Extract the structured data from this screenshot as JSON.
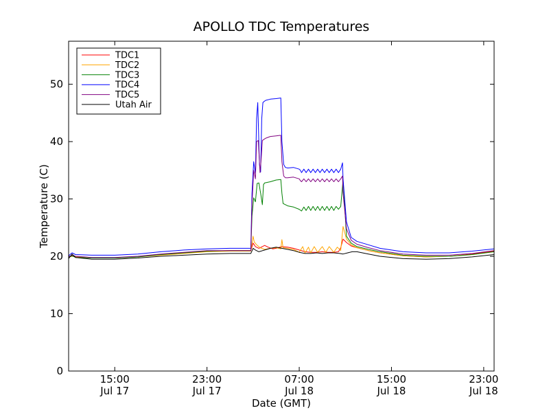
{
  "chart_data": {
    "type": "line",
    "title": "APOLLO TDC Temperatures",
    "xlabel": "Date (GMT)",
    "ylabel": "Temperature (C)",
    "ylim": [
      0,
      57.5
    ],
    "y_ticks": [
      0,
      10,
      20,
      30,
      40,
      50
    ],
    "xlim": [
      11.0,
      47.9
    ],
    "x_unit": "hours since Jul 17 00:00 GMT",
    "x_ticks": [
      {
        "x": 15,
        "time": "15:00",
        "date": "Jul 17"
      },
      {
        "x": 23,
        "time": "23:00",
        "date": "Jul 17"
      },
      {
        "x": 31,
        "time": "07:00",
        "date": "Jul 18"
      },
      {
        "x": 39,
        "time": "15:00",
        "date": "Jul 18"
      },
      {
        "x": 47,
        "time": "23:00",
        "date": "Jul 18"
      }
    ],
    "legend_position": "top-left",
    "series": [
      {
        "name": "TDC1",
        "color": "#ff0000",
        "x": [
          11.0,
          11.3,
          11.6,
          13,
          15,
          17,
          19,
          21,
          23,
          25,
          26.8,
          27.0,
          27.2,
          27.5,
          27.8,
          28.0,
          28.3,
          28.7,
          29.0,
          29.5,
          30.0,
          30.5,
          31.0,
          31.5,
          32.0,
          32.5,
          33.0,
          33.5,
          34.0,
          34.4,
          34.6,
          34.8,
          35.1,
          35.5,
          36.0,
          37,
          38,
          40,
          42,
          44,
          46,
          47.9
        ],
        "y": [
          19.9,
          20.1,
          19.9,
          19.7,
          19.7,
          19.9,
          20.3,
          20.6,
          20.9,
          21.0,
          21.0,
          22.3,
          21.7,
          21.4,
          21.7,
          21.9,
          21.6,
          21.3,
          21.4,
          21.7,
          21.6,
          21.4,
          21.1,
          20.8,
          20.7,
          20.7,
          20.8,
          20.7,
          20.7,
          20.8,
          21.5,
          23.0,
          22.4,
          21.8,
          21.5,
          21.0,
          20.6,
          20.1,
          19.9,
          20.0,
          20.4,
          20.9
        ]
      },
      {
        "name": "TDC2",
        "color": "#ffa500",
        "x": [
          11.0,
          11.3,
          11.6,
          13,
          15,
          17,
          19,
          21,
          23,
          25,
          26.8,
          27.0,
          27.1,
          27.3,
          27.6,
          28.0,
          28.5,
          29.0,
          29.4,
          29.5,
          29.6,
          30.0,
          30.5,
          31.0,
          31.3,
          31.5,
          31.8,
          32.0,
          32.3,
          32.6,
          33.0,
          33.3,
          33.6,
          34.0,
          34.3,
          34.6,
          34.8,
          35.1,
          35.5,
          36.0,
          37,
          38,
          40,
          42,
          44,
          46,
          47.9
        ],
        "y": [
          19.9,
          20.0,
          19.9,
          19.7,
          19.7,
          19.9,
          20.2,
          20.5,
          20.8,
          20.9,
          20.9,
          23.5,
          22.5,
          22.0,
          21.5,
          21.2,
          21.4,
          21.5,
          21.3,
          22.9,
          21.5,
          21.4,
          21.2,
          20.7,
          21.7,
          20.6,
          21.6,
          20.6,
          21.7,
          20.7,
          21.7,
          20.7,
          21.7,
          20.7,
          21.6,
          21.0,
          25.2,
          23.0,
          22.0,
          21.5,
          21.0,
          20.6,
          20.1,
          19.9,
          20.0,
          20.3,
          20.8
        ]
      },
      {
        "name": "TDC3",
        "color": "#008000",
        "x": [
          11.0,
          11.3,
          11.6,
          13,
          15,
          17,
          19,
          21,
          23,
          25,
          26.8,
          26.9,
          27.05,
          27.2,
          27.35,
          27.5,
          27.65,
          27.8,
          27.9,
          28.0,
          28.5,
          29.0,
          29.4,
          29.5,
          29.6,
          30.0,
          30.5,
          31.0,
          31.2,
          31.4,
          31.6,
          31.8,
          32.0,
          32.2,
          32.4,
          32.6,
          32.8,
          33.0,
          33.2,
          33.4,
          33.6,
          33.8,
          34.0,
          34.2,
          34.4,
          34.6,
          34.8,
          35.1,
          35.5,
          36.0,
          37,
          38,
          40,
          42,
          44,
          46,
          47.9
        ],
        "y": [
          19.8,
          20.1,
          19.8,
          19.7,
          19.7,
          19.9,
          20.3,
          20.6,
          20.9,
          21.0,
          21.0,
          27.0,
          30.2,
          29.5,
          32.7,
          32.8,
          31.0,
          29.0,
          32.5,
          32.8,
          33.0,
          33.3,
          33.4,
          31.0,
          29.2,
          28.8,
          28.6,
          28.2,
          27.9,
          28.6,
          28.0,
          28.7,
          28.0,
          28.7,
          28.0,
          28.7,
          28.0,
          28.7,
          28.0,
          28.7,
          28.0,
          28.7,
          28.0,
          28.7,
          28.2,
          28.7,
          33.3,
          23.5,
          22.3,
          21.7,
          21.2,
          20.8,
          20.2,
          20.0,
          20.0,
          20.3,
          20.8
        ]
      },
      {
        "name": "TDC4",
        "color": "#0000ff",
        "x": [
          11.0,
          11.3,
          11.6,
          13,
          15,
          17,
          19,
          21,
          23,
          25,
          26.8,
          26.9,
          27.05,
          27.2,
          27.3,
          27.4,
          27.55,
          27.65,
          27.75,
          27.85,
          27.95,
          28.1,
          28.5,
          29.0,
          29.4,
          29.5,
          29.65,
          29.8,
          30.0,
          30.5,
          31.0,
          31.1,
          31.2,
          31.4,
          31.6,
          31.8,
          32.0,
          32.2,
          32.4,
          32.6,
          32.8,
          33.0,
          33.2,
          33.4,
          33.6,
          33.8,
          34.0,
          34.2,
          34.4,
          34.6,
          34.75,
          34.8,
          35.1,
          35.5,
          36.0,
          37,
          38,
          40,
          42,
          44,
          46,
          47.9
        ],
        "y": [
          20.1,
          20.6,
          20.3,
          20.2,
          20.2,
          20.4,
          20.8,
          21.1,
          21.3,
          21.4,
          21.4,
          31.0,
          36.5,
          34.5,
          44.0,
          46.8,
          36.0,
          34.7,
          44.0,
          46.8,
          47.0,
          47.2,
          47.4,
          47.5,
          47.6,
          40.0,
          36.0,
          35.5,
          35.4,
          35.5,
          35.2,
          35.0,
          34.6,
          35.2,
          34.6,
          35.2,
          34.6,
          35.2,
          34.6,
          35.2,
          34.6,
          35.2,
          34.6,
          35.2,
          34.6,
          35.2,
          34.6,
          35.2,
          34.6,
          35.2,
          36.3,
          33.5,
          26.0,
          23.3,
          22.6,
          22.0,
          21.4,
          20.8,
          20.6,
          20.6,
          20.9,
          21.3
        ]
      },
      {
        "name": "TDC5",
        "color": "#800080",
        "x": [
          11.0,
          11.3,
          11.6,
          13,
          15,
          17,
          19,
          21,
          23,
          25,
          26.8,
          26.9,
          27.05,
          27.2,
          27.3,
          27.45,
          27.6,
          27.7,
          27.8,
          27.95,
          28.1,
          28.5,
          29.0,
          29.4,
          29.5,
          29.65,
          29.8,
          30.0,
          30.5,
          31.0,
          31.1,
          31.2,
          31.4,
          31.6,
          31.8,
          32.0,
          32.2,
          32.4,
          32.6,
          32.8,
          33.0,
          33.2,
          33.4,
          33.6,
          33.8,
          34.0,
          34.2,
          34.4,
          34.6,
          34.75,
          34.8,
          35.1,
          35.5,
          36.0,
          37,
          38,
          40,
          42,
          44,
          46,
          47.9
        ],
        "y": [
          19.9,
          20.2,
          20.0,
          19.8,
          19.8,
          20.0,
          20.4,
          20.7,
          21.0,
          21.0,
          21.0,
          29.0,
          35.0,
          33.5,
          40.0,
          40.2,
          34.6,
          37.0,
          40.2,
          40.4,
          40.6,
          40.9,
          41.0,
          41.1,
          36.5,
          34.0,
          33.7,
          33.7,
          33.8,
          33.5,
          33.2,
          33.0,
          33.5,
          33.0,
          33.5,
          33.0,
          33.5,
          33.0,
          33.5,
          33.0,
          33.5,
          33.0,
          33.5,
          33.0,
          33.5,
          33.0,
          33.5,
          33.0,
          33.5,
          34.0,
          31.0,
          24.8,
          22.8,
          22.1,
          21.5,
          21.0,
          20.4,
          20.2,
          20.2,
          20.5,
          21.0
        ]
      },
      {
        "name": "Utah Air",
        "color": "#000000",
        "x": [
          11.0,
          11.3,
          11.6,
          13,
          15,
          17,
          19,
          21,
          23,
          25,
          26.8,
          27.0,
          27.2,
          27.5,
          28.0,
          28.5,
          29.0,
          29.5,
          30.0,
          30.5,
          31.0,
          31.5,
          32.0,
          32.5,
          33.0,
          33.5,
          34.0,
          34.5,
          34.8,
          35.2,
          35.6,
          36.0,
          37,
          38,
          40,
          42,
          44,
          46,
          47.9
        ],
        "y": [
          19.6,
          20.4,
          19.8,
          19.5,
          19.5,
          19.7,
          20.0,
          20.2,
          20.4,
          20.5,
          20.5,
          21.4,
          21.1,
          20.8,
          21.1,
          21.4,
          21.6,
          21.4,
          21.2,
          21.0,
          20.7,
          20.5,
          20.5,
          20.6,
          20.5,
          20.6,
          20.6,
          20.5,
          20.4,
          20.6,
          20.8,
          20.8,
          20.4,
          20.0,
          19.6,
          19.5,
          19.6,
          19.9,
          20.3
        ]
      }
    ]
  }
}
